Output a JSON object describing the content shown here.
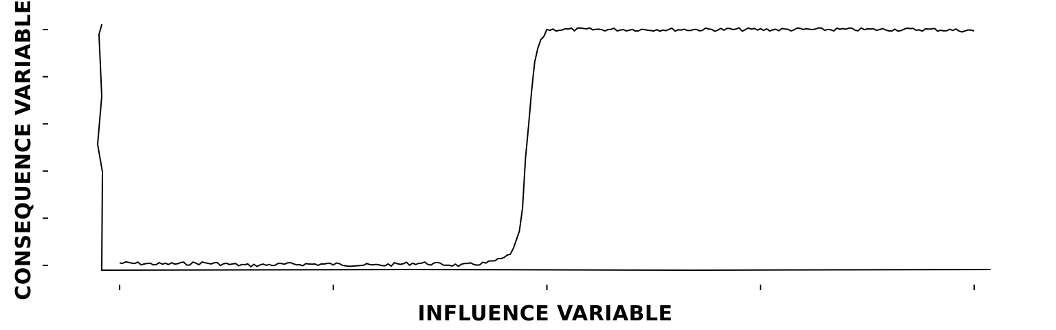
{
  "chart_data": {
    "type": "line",
    "style": "xkcd",
    "title": "",
    "xlabel": "INFLUENCE VARIABLE",
    "ylabel": "CONSEQUENCE VARIABLE",
    "xlim": [
      0,
      1
    ],
    "ylim": [
      -0.02,
      1.0
    ],
    "x_ticks": [
      0,
      0.25,
      0.5,
      0.75,
      1.0
    ],
    "y_ticks": [
      0,
      0.2,
      0.4,
      0.6,
      0.8,
      1.0
    ],
    "tick_labels_shown": false,
    "grid": false,
    "legend": "none",
    "line_color": "#000000",
    "series": [
      {
        "values_note_free": true,
        "x": [
          0,
          0.05,
          0.1,
          0.15,
          0.2,
          0.25,
          0.3,
          0.35,
          0.4,
          0.43,
          0.45,
          0.46,
          0.47,
          0.475,
          0.48,
          0.485,
          0.49,
          0.5,
          0.55,
          0.6,
          0.65,
          0.7,
          0.75,
          0.8,
          0.85,
          0.9,
          0.95,
          1.0
        ],
        "y": [
          0.01,
          0.005,
          0.01,
          0.0,
          0.005,
          0.005,
          0.0,
          0.01,
          0.0,
          0.01,
          0.03,
          0.06,
          0.16,
          0.45,
          0.65,
          0.85,
          0.93,
          1.0,
          1.0,
          1.0,
          1.0,
          1.0,
          1.0,
          1.0,
          1.0,
          1.0,
          1.0,
          0.995
        ]
      }
    ]
  }
}
